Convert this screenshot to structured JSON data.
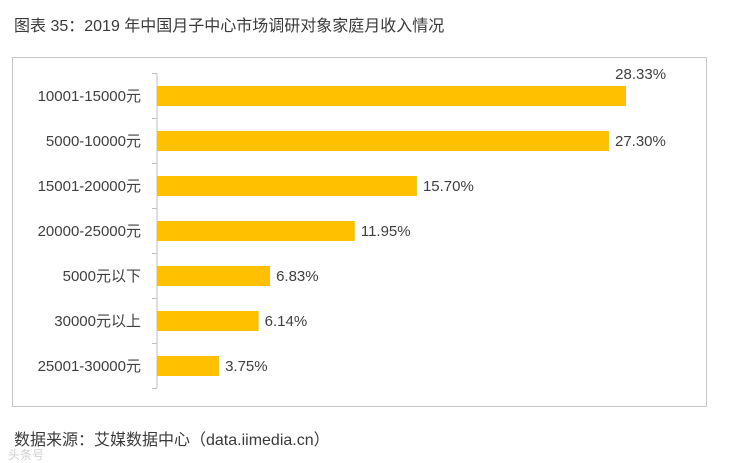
{
  "figure": {
    "title": "图表 35：2019 年中国月子中心市场调研对象家庭月收入情况",
    "source": "数据来源：艾媒数据中心（data.iimedia.cn）",
    "watermark": "头条号"
  },
  "chart_data": {
    "type": "bar",
    "orientation": "horizontal",
    "categories": [
      "10001-15000元",
      "5000-10000元",
      "15001-20000元",
      "20000-25000元",
      "5000元以下",
      "30000元以上",
      "25001-30000元"
    ],
    "values": [
      28.33,
      27.3,
      15.7,
      11.95,
      6.83,
      6.14,
      3.75
    ],
    "value_labels": [
      "28.33%",
      "27.30%",
      "15.70%",
      "11.95%",
      "6.83%",
      "6.14%",
      "3.75%"
    ],
    "unit": "%",
    "xlim": [
      0,
      30
    ],
    "bar_color": "#FFC000",
    "grid": false,
    "legend": "none",
    "title": "",
    "xlabel": "",
    "ylabel": ""
  }
}
